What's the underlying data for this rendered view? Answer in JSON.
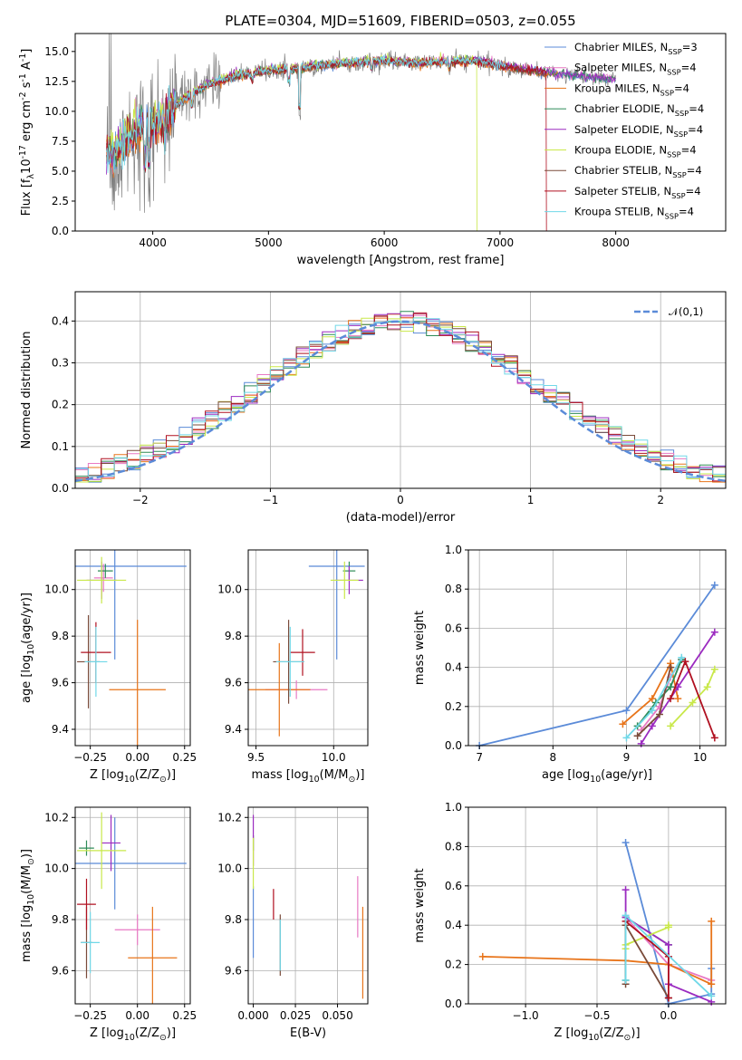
{
  "colors": {
    "c_miles": "#5b8bd8",
    "s_miles": "#e879c4",
    "k_miles": "#e8741a",
    "c_elodie": "#2e8b57",
    "s_elodie": "#9b2bc0",
    "k_elodie": "#c9e84a",
    "c_stelib": "#7a4b3a",
    "s_stelib": "#b01020",
    "k_stelib": "#70d8e8",
    "data": "#808080",
    "normal": "#5b8bd8"
  },
  "series_names": [
    "Chabrier MILES, N$_{SSP}$=3",
    "Salpeter MILES, N$_{SSP}$=4",
    "Kroupa MILES, N$_{SSP}$=4",
    "Chabrier ELODIE, N$_{SSP}$=4",
    "Salpeter ELODIE, N$_{SSP}$=4",
    "Kroupa ELODIE, N$_{SSP}$=4",
    "Chabrier STELIB, N$_{SSP}$=4",
    "Salpeter STELIB, N$_{SSP}$=4",
    "Kroupa STELIB, N$_{SSP}$=4"
  ],
  "chart_data": [
    {
      "id": "spectrum",
      "type": "line",
      "title": "PLATE=0304, MJD=51609, FIBERID=0503, z=0.055",
      "xlabel": "wavelength [Angstrom, rest frame]",
      "ylabel": "Flux [f$_\\lambda$10$^{-17}$ erg cm$^{-2}$ s$^{-1}$ A$^{-1}$]",
      "xlim": [
        3330,
        8950
      ],
      "ylim": [
        0,
        16.5
      ],
      "xticks": [
        4000,
        5000,
        6000,
        7000,
        8000
      ],
      "yticks": [
        0.0,
        2.5,
        5.0,
        7.5,
        10.0,
        12.5,
        15.0
      ],
      "grid": false,
      "legend": "upper right",
      "continuum": {
        "x": [
          3600,
          3700,
          3800,
          3900,
          4000,
          4100,
          4200,
          4300,
          4400,
          4500,
          4700,
          5000,
          5300,
          5500,
          5800,
          6000,
          6300,
          6600,
          6800,
          7000,
          7200,
          7400,
          7600,
          7800,
          8000,
          8200,
          8400,
          8800
        ],
        "y": [
          6.5,
          6.8,
          8.0,
          8.5,
          8.8,
          9.5,
          10.5,
          11.2,
          11.8,
          12.3,
          12.9,
          13.4,
          13.6,
          13.9,
          14.1,
          14.2,
          14.0,
          14.2,
          14.2,
          13.8,
          13.5,
          13.2,
          13.0,
          12.8,
          12.6,
          12.8,
          12.5,
          12.4
        ]
      }
    },
    {
      "id": "residuals",
      "type": "histogram",
      "xlabel": "(data-model)/error",
      "ylabel": "Normed distribution",
      "xlim": [
        -2.5,
        2.5
      ],
      "ylim": [
        0,
        0.47
      ],
      "xticks": [
        -2,
        -1,
        0,
        1,
        2
      ],
      "yticks": [
        0.0,
        0.1,
        0.2,
        0.3,
        0.4
      ],
      "grid": true,
      "legend": "upper right",
      "normal_label": "$\\mathcal{N}(0,1)$",
      "bin_width": 0.1
    },
    {
      "id": "age_vs_Z",
      "type": "errorbar",
      "xlabel": "Z [log$_{10}$(Z/Z$_\\odot$)]",
      "ylabel": "age  [log$_{10}$(age/yr)]",
      "xlim": [
        -0.33,
        0.28
      ],
      "ylim": [
        9.33,
        10.17
      ],
      "xticks": [
        -0.25,
        0.0,
        0.25
      ],
      "yticks": [
        9.4,
        9.6,
        9.8,
        10.0
      ],
      "grid": true,
      "points": [
        {
          "x": -0.12,
          "y": 10.1,
          "xerr": 0.38,
          "yerr": 0.4
        },
        {
          "x": -0.18,
          "y": 10.05,
          "xerr": 0.05,
          "yerr": 0.06
        },
        {
          "x": 0.0,
          "y": 9.57,
          "xerr": 0.15,
          "yerr": 0.3
        },
        {
          "x": -0.17,
          "y": 10.08,
          "xerr": 0.04,
          "yerr": 0.03
        },
        {
          "x": -0.19,
          "y": 10.04,
          "xerr": 0.08,
          "yerr": 0.08
        },
        {
          "x": -0.19,
          "y": 10.04,
          "xerr": 0.13,
          "yerr": 0.1
        },
        {
          "x": -0.26,
          "y": 9.69,
          "xerr": 0.06,
          "yerr": 0.2
        },
        {
          "x": -0.22,
          "y": 9.73,
          "xerr": 0.08,
          "yerr": 0.13
        },
        {
          "x": -0.22,
          "y": 9.69,
          "xerr": 0.06,
          "yerr": 0.15
        }
      ]
    },
    {
      "id": "age_vs_mass",
      "type": "errorbar",
      "xlabel": "mass [log$_{10}$(M/M$_\\odot$)]",
      "ylabel": "",
      "xlim": [
        9.45,
        10.22
      ],
      "ylim": [
        9.33,
        10.17
      ],
      "xticks": [
        9.5,
        10.0
      ],
      "yticks": [
        9.4,
        9.6,
        9.8,
        10.0
      ],
      "grid": true,
      "points": [
        {
          "x": 10.02,
          "y": 10.1,
          "xerr": 0.18,
          "yerr": 0.4
        },
        {
          "x": 9.76,
          "y": 9.57,
          "xerr": 0.2,
          "yerr": 0.04
        },
        {
          "x": 9.65,
          "y": 9.57,
          "xerr": 0.2,
          "yerr": 0.2
        },
        {
          "x": 10.1,
          "y": 10.08,
          "xerr": 0.04,
          "yerr": 0.04
        },
        {
          "x": 10.1,
          "y": 10.04,
          "xerr": 0.09,
          "yerr": 0.06
        },
        {
          "x": 10.07,
          "y": 10.04,
          "xerr": 0.09,
          "yerr": 0.08
        },
        {
          "x": 9.71,
          "y": 9.69,
          "xerr": 0.1,
          "yerr": 0.18
        },
        {
          "x": 9.8,
          "y": 9.73,
          "xerr": 0.08,
          "yerr": 0.1
        },
        {
          "x": 9.72,
          "y": 9.69,
          "xerr": 0.09,
          "yerr": 0.15
        }
      ]
    },
    {
      "id": "weight_vs_age",
      "type": "line",
      "xlabel": "age  [log$_{10}$(age/yr)]",
      "ylabel": "mass weight",
      "xlim": [
        6.85,
        10.35
      ],
      "ylim": [
        0,
        1.0
      ],
      "xticks": [
        7,
        8,
        9,
        10
      ],
      "yticks": [
        0.0,
        0.2,
        0.4,
        0.6,
        0.8,
        1.0
      ],
      "grid": true,
      "series": [
        {
          "x": [
            7.0,
            9.0,
            10.2
          ],
          "y": [
            0.0,
            0.18,
            0.82
          ]
        },
        {
          "x": [
            9.2,
            9.45,
            9.6,
            9.75
          ],
          "y": [
            0.08,
            0.2,
            0.35,
            0.44
          ]
        },
        {
          "x": [
            8.95,
            9.35,
            9.6,
            9.7
          ],
          "y": [
            0.11,
            0.24,
            0.42,
            0.24
          ]
        },
        {
          "x": [
            9.15,
            9.4,
            9.6,
            9.75
          ],
          "y": [
            0.1,
            0.22,
            0.3,
            0.44
          ]
        },
        {
          "x": [
            9.2,
            9.35,
            9.7,
            10.2
          ],
          "y": [
            0.01,
            0.1,
            0.3,
            0.58
          ]
        },
        {
          "x": [
            9.6,
            9.9,
            10.1,
            10.2
          ],
          "y": [
            0.1,
            0.22,
            0.3,
            0.39
          ]
        },
        {
          "x": [
            9.15,
            9.45,
            9.6
          ],
          "y": [
            0.05,
            0.16,
            0.4
          ]
        },
        {
          "x": [
            9.6,
            9.8,
            10.2
          ],
          "y": [
            0.24,
            0.43,
            0.04
          ]
        },
        {
          "x": [
            9.0,
            9.35,
            9.75
          ],
          "y": [
            0.04,
            0.18,
            0.45
          ]
        }
      ]
    },
    {
      "id": "mass_vs_Z",
      "type": "errorbar",
      "xlabel": "Z [log$_{10}$(Z/Z$_\\odot$)]",
      "ylabel": "mass [log$_{10}$(M/M$_\\odot$)]",
      "xlim": [
        -0.33,
        0.28
      ],
      "ylim": [
        9.47,
        10.24
      ],
      "xticks": [
        -0.25,
        0.0,
        0.25
      ],
      "yticks": [
        9.6,
        9.8,
        10.0,
        10.2
      ],
      "grid": true,
      "points": [
        {
          "x": -0.12,
          "y": 10.02,
          "xerr": 0.38,
          "yerr": 0.18
        },
        {
          "x": 0.0,
          "y": 9.76,
          "xerr": 0.12,
          "yerr": 0.06
        },
        {
          "x": 0.08,
          "y": 9.65,
          "xerr": 0.13,
          "yerr": 0.2
        },
        {
          "x": -0.27,
          "y": 10.08,
          "xerr": 0.04,
          "yerr": 0.03
        },
        {
          "x": -0.14,
          "y": 10.1,
          "xerr": 0.05,
          "yerr": 0.11
        },
        {
          "x": -0.19,
          "y": 10.07,
          "xerr": 0.13,
          "yerr": 0.15
        },
        {
          "x": -0.27,
          "y": 9.71,
          "xerr": 0.03,
          "yerr": 0.14
        },
        {
          "x": -0.27,
          "y": 9.86,
          "xerr": 0.05,
          "yerr": 0.1
        },
        {
          "x": -0.25,
          "y": 9.71,
          "xerr": 0.05,
          "yerr": 0.12
        }
      ]
    },
    {
      "id": "mass_vs_ebv",
      "type": "errorbar",
      "xlabel": "E(B-V)",
      "ylabel": "",
      "xlim": [
        -0.003,
        0.068
      ],
      "ylim": [
        9.47,
        10.24
      ],
      "xticks": [
        0.0,
        0.025,
        0.05
      ],
      "yticks": [
        9.6,
        9.8,
        10.0,
        10.2
      ],
      "grid": true,
      "points": [
        {
          "x": 0.0,
          "y": 9.79,
          "xerr": 0,
          "yerr": 0.14
        },
        {
          "x": 0.062,
          "y": 9.85,
          "xerr": 0,
          "yerr": 0.12
        },
        {
          "x": 0.065,
          "y": 9.67,
          "xerr": 0,
          "yerr": 0.18
        },
        {
          "x": 0.0,
          "y": 10.1,
          "xerr": 0,
          "yerr": 0.03
        },
        {
          "x": 0.0,
          "y": 10.11,
          "xerr": 0,
          "yerr": 0.1
        },
        {
          "x": 0.0,
          "y": 10.02,
          "xerr": 0,
          "yerr": 0.1
        },
        {
          "x": 0.016,
          "y": 9.7,
          "xerr": 0,
          "yerr": 0.12
        },
        {
          "x": 0.012,
          "y": 9.86,
          "xerr": 0,
          "yerr": 0.06
        },
        {
          "x": 0.016,
          "y": 9.7,
          "xerr": 0,
          "yerr": 0.1
        }
      ]
    },
    {
      "id": "weight_vs_Z",
      "type": "line",
      "xlabel": "Z [log$_{10}$(Z/Z$_\\odot$)]",
      "ylabel": "mass weight",
      "xlim": [
        -1.4,
        0.4
      ],
      "ylim": [
        0,
        1.0
      ],
      "xticks": [
        -1.0,
        -0.5,
        0.0
      ],
      "yticks": [
        0.0,
        0.2,
        0.4,
        0.6,
        0.8,
        1.0
      ],
      "grid": true,
      "series": [
        {
          "x": [
            -0.3,
            0.0,
            0.3,
            0.3
          ],
          "y": [
            0.82,
            0.0,
            0.05,
            0.18
          ]
        },
        {
          "x": [
            -0.3,
            0.0,
            0.3
          ],
          "y": [
            0.44,
            0.2,
            0.12
          ]
        },
        {
          "x": [
            -1.3,
            -0.3,
            0.0,
            0.3,
            0.3
          ],
          "y": [
            0.24,
            0.22,
            0.2,
            0.1,
            0.42
          ]
        },
        {
          "x": [
            -0.3,
            -0.3,
            0.0
          ],
          "y": [
            0.12,
            0.44,
            0.3
          ]
        },
        {
          "x": [
            -0.3,
            -0.3,
            0.0,
            0.0,
            0.3
          ],
          "y": [
            0.58,
            0.44,
            0.3,
            0.1,
            0.01
          ]
        },
        {
          "x": [
            -0.3,
            -0.3,
            0.0,
            0.0
          ],
          "y": [
            0.28,
            0.3,
            0.39,
            0.4
          ]
        },
        {
          "x": [
            -0.3,
            -0.3,
            0.0
          ],
          "y": [
            0.1,
            0.4,
            0.03
          ]
        },
        {
          "x": [
            -0.3,
            0.0,
            0.0
          ],
          "y": [
            0.42,
            0.24,
            0.03
          ]
        },
        {
          "x": [
            -0.3,
            -0.3,
            0.3
          ],
          "y": [
            0.12,
            0.45,
            0.04
          ]
        }
      ]
    }
  ]
}
